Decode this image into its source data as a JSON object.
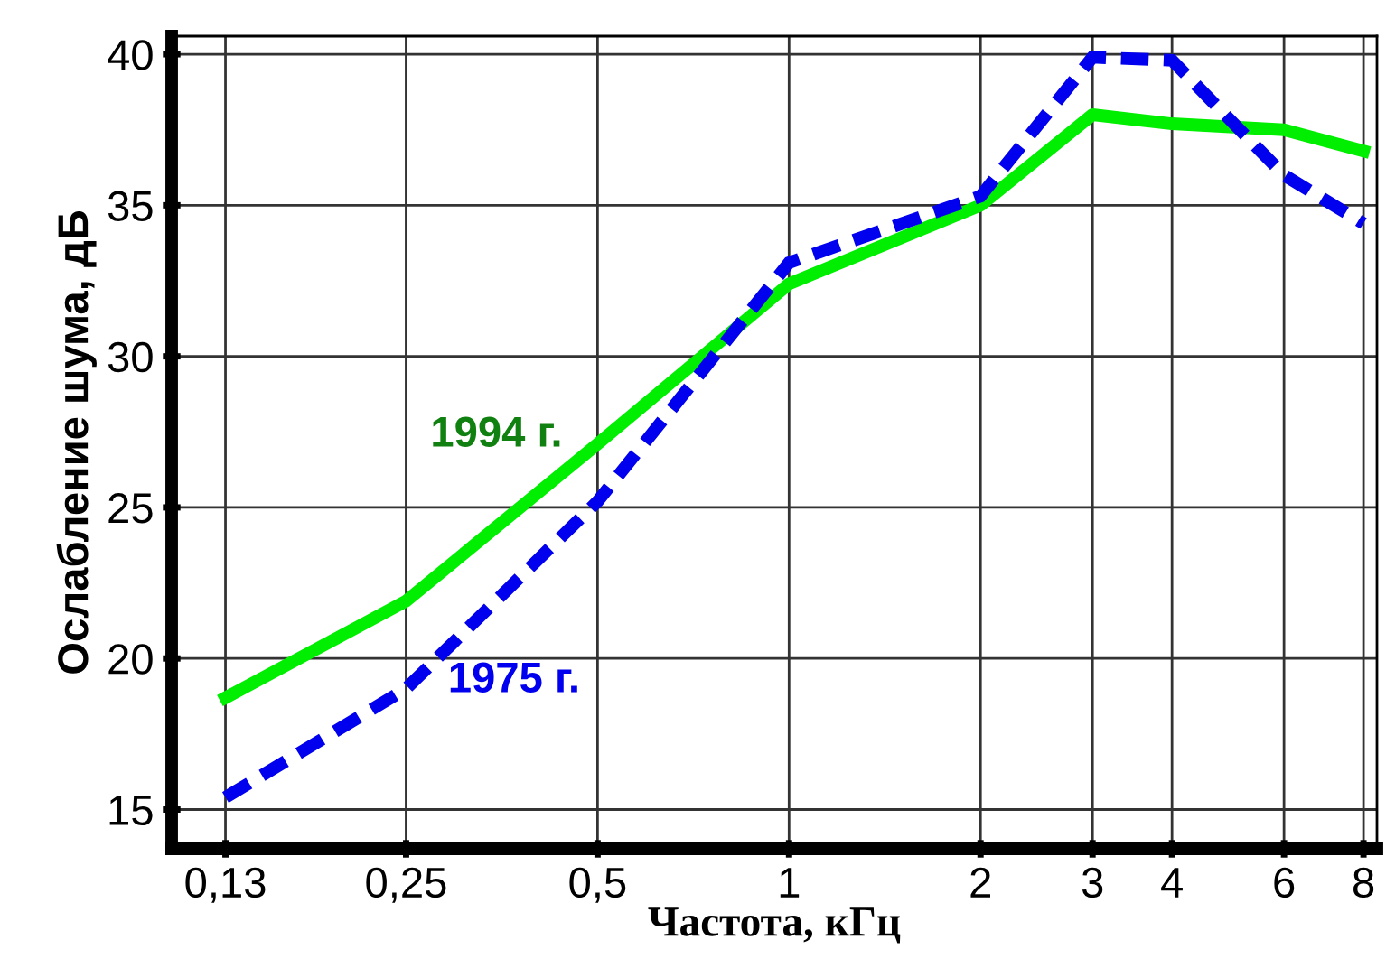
{
  "chart_data": {
    "type": "line",
    "xlabel": "Частота, кГц",
    "ylabel": "Ослабление шума, дБ",
    "log": "x",
    "xlim": [
      0.107,
      8.4
    ],
    "ylim": [
      13.7,
      40.6
    ],
    "xticks": [
      {
        "value": 0.13,
        "label": "0,13"
      },
      {
        "value": 0.25,
        "label": "0,25"
      },
      {
        "value": 0.5,
        "label": "0,5"
      },
      1,
      2,
      3,
      4,
      6,
      8
    ],
    "yticks": [
      15,
      20,
      25,
      30,
      35,
      40
    ],
    "grid": true,
    "x": [
      0.13,
      0.25,
      0.5,
      1,
      2,
      3,
      4,
      6,
      8
    ],
    "series": [
      {
        "name": "1994 г.",
        "color": "#00ee00",
        "line_style": "solid",
        "values": [
          18.7,
          21.9,
          27.1,
          32.4,
          35.0,
          38.0,
          37.7,
          37.5,
          36.8
        ]
      },
      {
        "name": "1975 г.",
        "color": "#0000ee",
        "line_style": "dashed",
        "values": [
          15.4,
          19.0,
          25.2,
          33.1,
          35.3,
          39.9,
          39.8,
          36.0,
          34.4
        ]
      }
    ],
    "legend": false
  }
}
